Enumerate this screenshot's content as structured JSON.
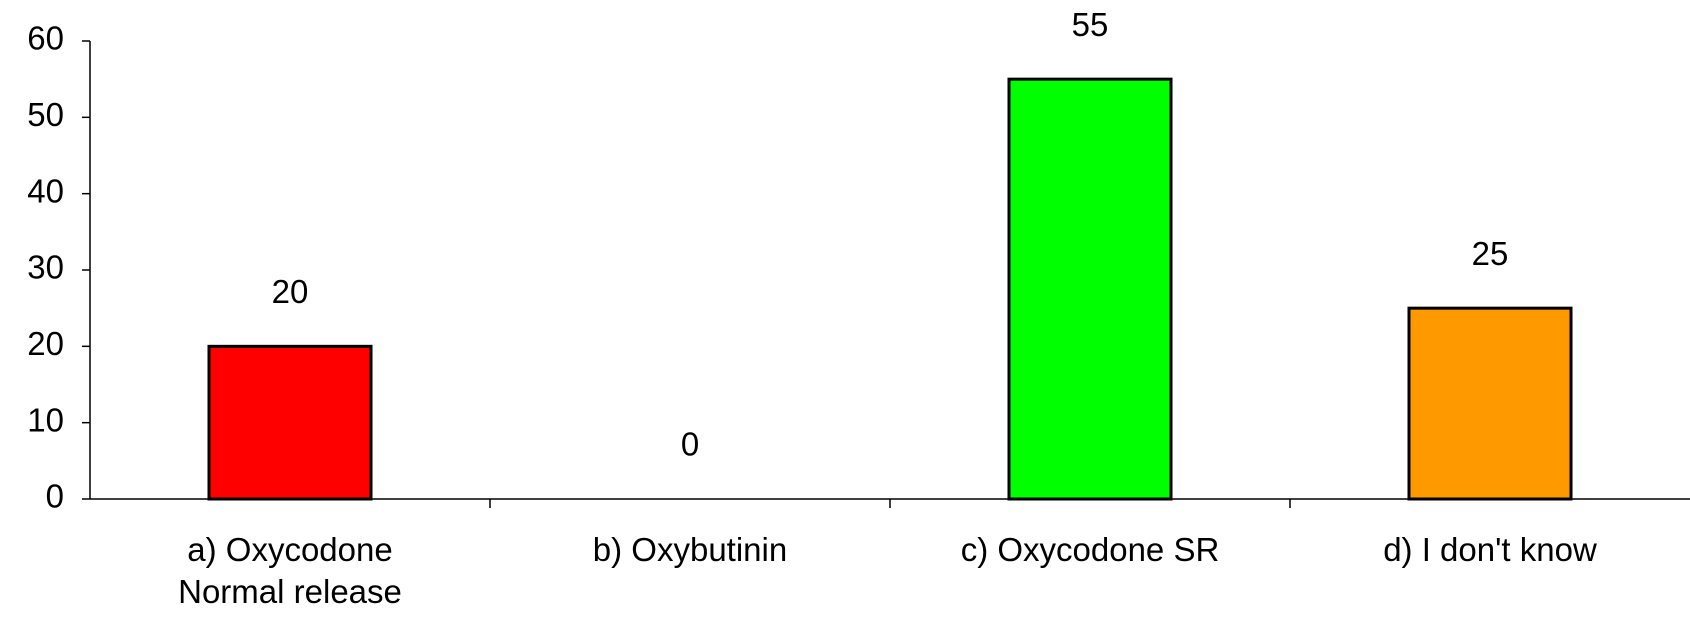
{
  "chart_data": {
    "type": "bar",
    "categories": [
      "a) Oxycodone\nNormal release",
      "b) Oxybutinin",
      "c) Oxycodone SR",
      "d) I don't know"
    ],
    "values": [
      20,
      0,
      55,
      25
    ],
    "colors": [
      "#ff0000",
      null,
      "#00ff00",
      "#ff9900"
    ],
    "ylim": [
      0,
      60
    ],
    "yticks": [
      0,
      10,
      20,
      30,
      40,
      50,
      60
    ],
    "grid": false
  }
}
